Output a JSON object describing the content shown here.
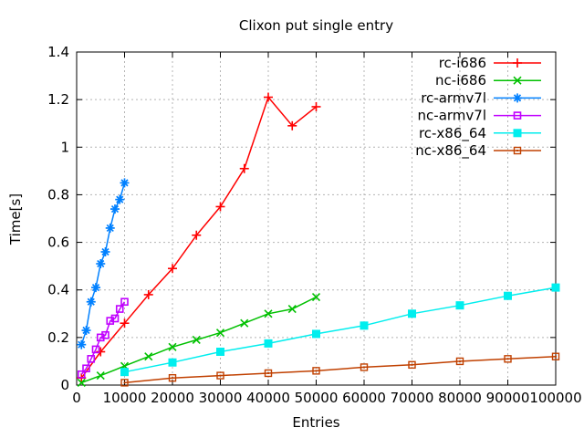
{
  "title": "Clixon put single entry",
  "chart_data": {
    "type": "line",
    "title": "Clixon put single entry",
    "xlabel": "Entries",
    "ylabel": "Time[s]",
    "xlim": [
      0,
      100000
    ],
    "ylim": [
      0,
      1.4
    ],
    "x_ticks": [
      0,
      10000,
      20000,
      30000,
      40000,
      50000,
      60000,
      70000,
      80000,
      90000,
      100000
    ],
    "x_tick_labels": [
      "0",
      "10000",
      "20000",
      "30000",
      "40000",
      "50000",
      "60000",
      "70000",
      "80000",
      "90000",
      "100000"
    ],
    "y_ticks": [
      0,
      0.2,
      0.4,
      0.6,
      0.8,
      1,
      1.2,
      1.4
    ],
    "y_tick_labels": [
      "0",
      "0.2",
      "0.4",
      "0.6",
      "0.8",
      "1",
      "1.2",
      "1.4"
    ],
    "grid": true,
    "legend_position": "top-right-inside",
    "series": [
      {
        "name": "rc-i686",
        "color": "#ff0000",
        "marker": "plus",
        "points": [
          [
            1000,
            0.03
          ],
          [
            5000,
            0.14
          ],
          [
            10000,
            0.26
          ],
          [
            15000,
            0.38
          ],
          [
            20000,
            0.49
          ],
          [
            25000,
            0.63
          ],
          [
            30000,
            0.75
          ],
          [
            35000,
            0.91
          ],
          [
            40000,
            1.21
          ],
          [
            45000,
            1.09
          ],
          [
            50000,
            1.17
          ]
        ]
      },
      {
        "name": "nc-i686",
        "color": "#00c000",
        "marker": "cross",
        "points": [
          [
            1000,
            0.01
          ],
          [
            5000,
            0.04
          ],
          [
            10000,
            0.08
          ],
          [
            15000,
            0.12
          ],
          [
            20000,
            0.16
          ],
          [
            25000,
            0.19
          ],
          [
            30000,
            0.22
          ],
          [
            35000,
            0.26
          ],
          [
            40000,
            0.3
          ],
          [
            45000,
            0.32
          ],
          [
            50000,
            0.37
          ]
        ]
      },
      {
        "name": "rc-armv7l",
        "color": "#0080ff",
        "marker": "asterisk",
        "points": [
          [
            1000,
            0.17
          ],
          [
            2000,
            0.23
          ],
          [
            3000,
            0.35
          ],
          [
            4000,
            0.41
          ],
          [
            5000,
            0.51
          ],
          [
            6000,
            0.56
          ],
          [
            7000,
            0.66
          ],
          [
            8000,
            0.74
          ],
          [
            9000,
            0.78
          ],
          [
            10000,
            0.85
          ]
        ]
      },
      {
        "name": "nc-armv7l",
        "color": "#c000ff",
        "marker": "square-open",
        "points": [
          [
            1000,
            0.045
          ],
          [
            2000,
            0.07
          ],
          [
            3000,
            0.11
          ],
          [
            4000,
            0.15
          ],
          [
            5000,
            0.2
          ],
          [
            6000,
            0.21
          ],
          [
            7000,
            0.27
          ],
          [
            8000,
            0.28
          ],
          [
            9000,
            0.32
          ],
          [
            10000,
            0.35
          ]
        ]
      },
      {
        "name": "rc-x86_64",
        "color": "#00eeee",
        "marker": "square-filled",
        "points": [
          [
            10000,
            0.055
          ],
          [
            20000,
            0.095
          ],
          [
            30000,
            0.14
          ],
          [
            40000,
            0.175
          ],
          [
            50000,
            0.215
          ],
          [
            60000,
            0.25
          ],
          [
            70000,
            0.3
          ],
          [
            80000,
            0.335
          ],
          [
            90000,
            0.375
          ],
          [
            100000,
            0.41
          ]
        ]
      },
      {
        "name": "nc-x86_64",
        "color": "#c04000",
        "marker": "square-dot",
        "points": [
          [
            10000,
            0.01
          ],
          [
            20000,
            0.03
          ],
          [
            30000,
            0.04
          ],
          [
            40000,
            0.05
          ],
          [
            50000,
            0.06
          ],
          [
            60000,
            0.075
          ],
          [
            70000,
            0.085
          ],
          [
            80000,
            0.1
          ],
          [
            90000,
            0.11
          ],
          [
            100000,
            0.12
          ]
        ]
      }
    ]
  }
}
